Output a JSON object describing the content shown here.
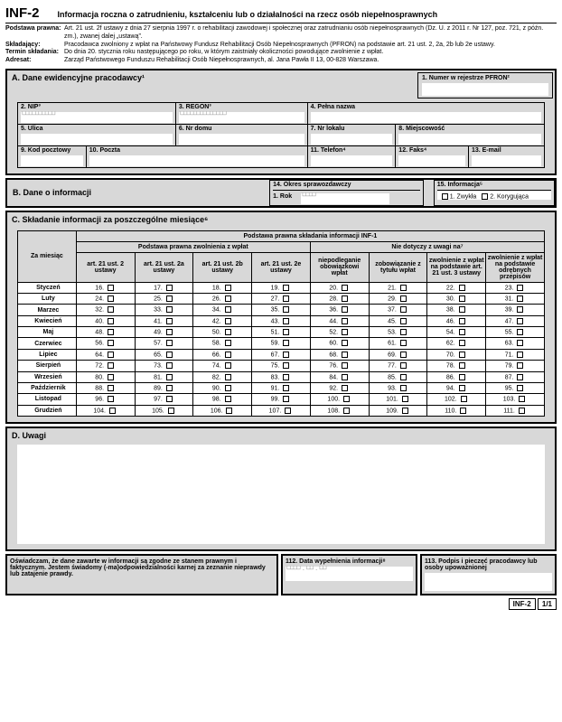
{
  "header": {
    "code": "INF-2",
    "title": "Informacja roczna o zatrudnieniu, kształceniu lub o działalności na rzecz osób niepełnosprawnych"
  },
  "legal": {
    "rows": [
      {
        "label": "Podstawa prawna:",
        "text": "Art. 21 ust. 2f ustawy z dnia 27 sierpnia 1997 r. o rehabilitacji zawodowej i społecznej oraz zatrudnianiu osób niepełnosprawnych (Dz. U. z 2011 r. Nr 127, poz. 721, z późn. zm.), zwanej dalej „ustawą”."
      },
      {
        "label": "Składający:",
        "text": "Pracodawca zwolniony z wpłat na Państwowy Fundusz Rehabilitacji Osób Niepełnosprawnych (PFRON) na podstawie art. 21 ust. 2, 2a, 2b lub 2e ustawy."
      },
      {
        "label": "Termin składania:",
        "text": "Do dnia 20. stycznia roku następującego po roku, w którym zaistniały okoliczności powodujące zwolnienie z wpłat."
      },
      {
        "label": "Adresat:",
        "text": "Zarząd Państwowego Funduszu Rehabilitacji Osób Niepełnosprawnych, al. Jana Pawła II 13, 00-828 Warszawa."
      }
    ]
  },
  "secA": {
    "title": "A. Dane ewidencyjne pracodawcy¹",
    "pfron": "1. Numer w rejestrze PFRON²",
    "f2": "2. NIP³",
    "f3": "3. REGON³",
    "f4": "4. Pełna nazwa",
    "f5": "5. Ulica",
    "f6": "6. Nr domu",
    "f7": "7. Nr lokalu",
    "f8": "8. Miejscowość",
    "f9": "9. Kod pocztowy",
    "f10": "10. Poczta",
    "f11": "11. Telefon⁴",
    "f12": "12. Faks⁴",
    "f13": "13. E-mail"
  },
  "secB": {
    "title": "B. Dane o informacji",
    "f14": "14. Okres sprawozdawczy",
    "f14sub": "1. Rok",
    "f15": "15. Informacja⁵",
    "opt1": "1. Zwykła",
    "opt2": "2. Korygująca"
  },
  "secC": {
    "title": "C. Składanie informacji za poszczególne miesiące⁶",
    "head_main": "Podstawa prawna składania informacji INF-1",
    "head_left": "Podstawa prawna zwolnienia z wpłat",
    "head_right": "Nie dotyczy z uwagi na⁷",
    "col_month": "Za miesiąc",
    "cols_left": [
      "art. 21 ust. 2 ustawy",
      "art. 21 ust. 2a ustawy",
      "art. 21 ust. 2b ustawy",
      "art. 21 ust. 2e ustawy"
    ],
    "cols_right": [
      "niepodleganie obowiązkowi wpłat",
      "zobowiązanie z tytułu wpłat",
      "zwolnienie z wpłat na podstawie art. 21 ust. 3 ustawy",
      "zwolnienie z wpłat na podstawie odrębnych przepisów"
    ],
    "months": [
      "Styczeń",
      "Luty",
      "Marzec",
      "Kwiecień",
      "Maj",
      "Czerwiec",
      "Lipiec",
      "Sierpień",
      "Wrzesień",
      "Październik",
      "Listopad",
      "Grudzień"
    ],
    "start_num": 16
  },
  "secD": {
    "title": "D. Uwagi"
  },
  "footer": {
    "decl": "Oświadczam, że dane zawarte w informacji są zgodne ze stanem prawnym i faktycznym. Jestem świadomy (-ma)odpowiedzialności karnej za zeznanie nieprawdy lub zatajenie prawdy.",
    "f112": "112. Data wypełnienia informacji⁸",
    "f113": "113. Podpis i pieczęć pracodawcy lub osoby upoważnionej"
  },
  "pagefoot": {
    "code": "INF-2",
    "page": "1/1"
  }
}
